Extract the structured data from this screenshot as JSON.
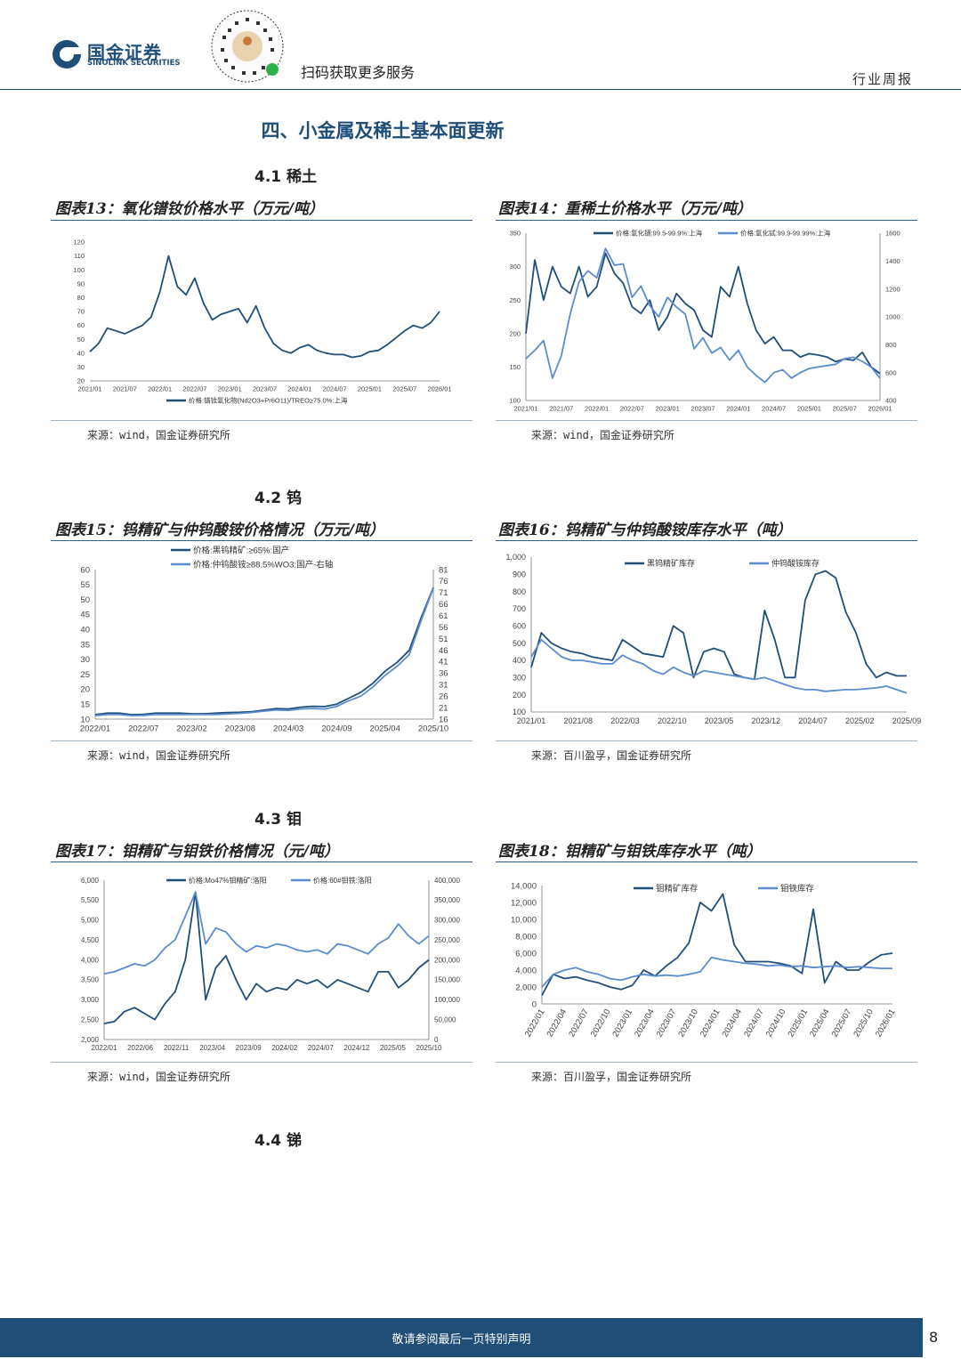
{
  "header": {
    "logo_cn": "国金证券",
    "logo_en": "SINOLINK SECURITIES",
    "scan_text": "扫码获取更多服务",
    "doc_type": "行业周报",
    "brand_color": "#1f4e79"
  },
  "section_title": "四、小金属及稀土基本面更新",
  "subsections": {
    "s41": "4.1 稀土",
    "s42": "4.2 钨",
    "s43": "4.3 钼",
    "s44": "4.4 锑"
  },
  "figures": [
    {
      "title": "图表13：氧化镨钕价格水平（万元/吨）",
      "source": "来源：wind，国金证券研究所"
    },
    {
      "title": "图表14：重稀土价格水平（万元/吨）",
      "source": "来源：wind，国金证券研究所"
    },
    {
      "title": "图表15：钨精矿与仲钨酸铵价格情况（万元/吨）",
      "source": "来源：wind，国金证券研究所"
    },
    {
      "title": "图表16：钨精矿与仲钨酸铵库存水平（吨）",
      "source": "来源：百川盈孚，国金证券研究所"
    },
    {
      "title": "图表17：钼精矿与钼铁价格情况（元/吨）",
      "source": "来源：wind，国金证券研究所"
    },
    {
      "title": "图表18：钼精矿与钼铁库存水平（吨）",
      "source": "来源：百川盈孚，国金证券研究所"
    }
  ],
  "footer": {
    "text": "敬请参阅最后一页特别声明",
    "page": "8"
  },
  "chart_data": [
    {
      "type": "line",
      "ylim": [
        20,
        120
      ],
      "yticks": [
        "20",
        "30",
        "40",
        "50",
        "60",
        "70",
        "80",
        "90",
        "100",
        "110",
        "120"
      ],
      "xticks": [
        "2021/01",
        "2021/07",
        "2022/01",
        "2022/07",
        "2023/01",
        "2023/07",
        "2024/01",
        "2024/07",
        "2025/01",
        "2025/07",
        "2026/01"
      ],
      "series": [
        {
          "name": "价格:镨钕氧化物(Nd2O3+Pr6O11)/TREO≥75.0%:上海",
          "color": "#1f4e79",
          "axis": "left",
          "values": [
            41,
            47,
            58,
            56,
            54,
            57,
            60,
            66,
            84,
            110,
            88,
            82,
            94,
            76,
            64,
            68,
            70,
            72,
            62,
            74,
            58,
            47,
            42,
            40,
            44,
            46,
            42,
            40,
            39,
            39,
            37,
            38,
            41,
            42,
            46,
            51,
            56,
            60,
            58,
            62,
            70
          ]
        }
      ]
    },
    {
      "type": "line",
      "ylim": [
        100,
        350
      ],
      "ylim_right": [
        400,
        1600
      ],
      "yticks": [
        "100",
        "150",
        "200",
        "250",
        "300",
        "350"
      ],
      "yticks_right": [
        "400",
        "600",
        "800",
        "1000",
        "1200",
        "1400",
        "1600"
      ],
      "xticks": [
        "2021/01",
        "2021/07",
        "2022/01",
        "2022/07",
        "2023/01",
        "2023/07",
        "2024/01",
        "2024/07",
        "2025/01",
        "2025/07",
        "2026/01"
      ],
      "series": [
        {
          "name": "价格:氧化镝:99.5-99.9%:上海",
          "color": "#1f4e79",
          "axis": "left",
          "values": [
            200,
            310,
            250,
            300,
            270,
            260,
            300,
            255,
            270,
            320,
            290,
            275,
            240,
            230,
            250,
            205,
            225,
            260,
            245,
            235,
            205,
            195,
            270,
            255,
            300,
            245,
            205,
            185,
            195,
            175,
            175,
            165,
            170,
            168,
            165,
            158,
            162,
            160,
            172,
            150,
            140
          ]
        },
        {
          "name": "价格:氧化铽:99.9-99.99%:上海",
          "color": "#5b8ccf",
          "axis": "right",
          "values": [
            700,
            760,
            830,
            560,
            720,
            1020,
            1250,
            1330,
            1280,
            1490,
            1370,
            1380,
            1140,
            1220,
            1080,
            1000,
            1140,
            1070,
            1020,
            770,
            850,
            740,
            780,
            690,
            760,
            640,
            580,
            530,
            600,
            620,
            560,
            600,
            630,
            640,
            650,
            660,
            700,
            710,
            680,
            640,
            560
          ]
        }
      ]
    },
    {
      "type": "line",
      "ylim": [
        10,
        60
      ],
      "ylim_right": [
        16,
        81
      ],
      "yticks": [
        "10",
        "15",
        "20",
        "25",
        "30",
        "35",
        "40",
        "45",
        "50",
        "55",
        "60"
      ],
      "yticks_right": [
        "16",
        "21",
        "26",
        "31",
        "36",
        "41",
        "46",
        "51",
        "56",
        "61",
        "66",
        "71",
        "76",
        "81"
      ],
      "xticks": [
        "2022/01",
        "2022/07",
        "2023/02",
        "2023/08",
        "2024/03",
        "2024/09",
        "2025/04",
        "2025/10"
      ],
      "series": [
        {
          "name": "价格:黑钨精矿:≥65%:国产",
          "color": "#1f4e79",
          "axis": "left",
          "values": [
            11.5,
            12,
            12,
            11.5,
            11.6,
            12,
            12,
            12,
            11.8,
            11.8,
            12,
            12.2,
            12.3,
            12.5,
            13,
            13.5,
            13.4,
            14,
            14.3,
            14.2,
            15,
            17,
            19,
            22,
            26,
            29,
            33,
            44,
            54
          ]
        },
        {
          "name": "价格:仲钨酸铵≥88.5%WO3:国产-右轴",
          "color": "#5b8ccf",
          "axis": "right",
          "values": [
            17.5,
            18,
            18,
            17.5,
            17.6,
            18,
            18,
            18,
            18,
            18,
            18,
            18.3,
            18.5,
            18.9,
            19.5,
            20,
            19.8,
            20.4,
            20.6,
            20.4,
            21.5,
            24,
            26,
            30,
            35,
            39,
            44,
            59,
            73
          ]
        }
      ]
    },
    {
      "type": "line",
      "ylim": [
        100,
        1000
      ],
      "yticks": [
        "100",
        "200",
        "300",
        "400",
        "500",
        "600",
        "700",
        "800",
        "900",
        "1,000"
      ],
      "xticks": [
        "2021/01",
        "2021/08",
        "2022/03",
        "2022/10",
        "2023/05",
        "2023/12",
        "2024/07",
        "2025/02",
        "2025/09"
      ],
      "series": [
        {
          "name": "黑钨精矿库存",
          "color": "#1f4e79",
          "axis": "left",
          "values": [
            360,
            560,
            500,
            470,
            450,
            440,
            420,
            410,
            400,
            520,
            480,
            440,
            430,
            420,
            600,
            560,
            300,
            450,
            470,
            450,
            320,
            300,
            290,
            690,
            520,
            300,
            300,
            750,
            900,
            920,
            880,
            680,
            560,
            380,
            300,
            330,
            310,
            310
          ]
        },
        {
          "name": "仲钨酸铵库存",
          "color": "#5b8ccf",
          "axis": "left",
          "values": [
            420,
            520,
            470,
            420,
            400,
            400,
            390,
            380,
            380,
            430,
            400,
            380,
            340,
            320,
            360,
            330,
            310,
            340,
            330,
            320,
            310,
            300,
            290,
            300,
            280,
            260,
            240,
            230,
            230,
            220,
            225,
            230,
            230,
            235,
            240,
            250,
            230,
            210
          ]
        }
      ]
    },
    {
      "type": "line",
      "ylim": [
        2000,
        6000
      ],
      "ylim_right": [
        0,
        400000
      ],
      "yticks": [
        "2,000",
        "2,500",
        "3,000",
        "3,500",
        "4,000",
        "4,500",
        "5,000",
        "5,500",
        "6,000"
      ],
      "yticks_right": [
        "0",
        "50,000",
        "100,000",
        "150,000",
        "200,000",
        "250,000",
        "300,000",
        "350,000",
        "400,000"
      ],
      "xticks": [
        "2022/01",
        "2022/06",
        "2022/11",
        "2023/04",
        "2023/09",
        "2024/02",
        "2024/07",
        "2024/12",
        "2025/05",
        "2025/10"
      ],
      "series": [
        {
          "name": "价格:Mo47%钼精矿:洛阳",
          "color": "#1f4e79",
          "axis": "left",
          "values": [
            2400,
            2450,
            2700,
            2800,
            2650,
            2500,
            2900,
            3200,
            4000,
            5700,
            3000,
            3800,
            4100,
            3500,
            3000,
            3400,
            3200,
            3300,
            3250,
            3500,
            3400,
            3500,
            3300,
            3500,
            3400,
            3300,
            3200,
            3700,
            3700,
            3300,
            3500,
            3800,
            4000
          ]
        },
        {
          "name": "价格:60#钼铁:洛阳",
          "color": "#5b8ccf",
          "axis": "right",
          "values": [
            165000,
            170000,
            180000,
            190000,
            185000,
            200000,
            230000,
            250000,
            310000,
            370000,
            240000,
            280000,
            270000,
            240000,
            220000,
            235000,
            230000,
            240000,
            235000,
            225000,
            220000,
            225000,
            215000,
            240000,
            235000,
            225000,
            215000,
            240000,
            255000,
            290000,
            260000,
            240000,
            260000
          ]
        }
      ]
    },
    {
      "type": "line",
      "ylim": [
        0,
        14000
      ],
      "yticks": [
        "0",
        "2,000",
        "4,000",
        "6,000",
        "8,000",
        "10,000",
        "12,000",
        "14,000"
      ],
      "xticks": [
        "2022/01",
        "2022/04",
        "2022/07",
        "2022/10",
        "2023/01",
        "2023/04",
        "2023/07",
        "2023/10",
        "2024/01",
        "2024/04",
        "2024/07",
        "2024/10",
        "2025/01",
        "2025/04",
        "2025/07",
        "2025/10",
        "2026/01"
      ],
      "series": [
        {
          "name": "钼精矿库存",
          "color": "#1f4e79",
          "axis": "left",
          "values": [
            1000,
            3500,
            3000,
            3200,
            2800,
            2500,
            2000,
            1700,
            2200,
            4000,
            3300,
            4500,
            5500,
            7200,
            12000,
            11000,
            13000,
            7000,
            5000,
            5000,
            5000,
            4800,
            4500,
            3600,
            11200,
            2500,
            5000,
            4000,
            4000,
            5000,
            5800,
            6000
          ]
        },
        {
          "name": "钼铁库存",
          "color": "#5b8ccf",
          "axis": "left",
          "values": [
            2000,
            3500,
            4000,
            4300,
            3800,
            3500,
            3000,
            2800,
            3200,
            3500,
            3300,
            3400,
            3300,
            3500,
            3800,
            5500,
            5200,
            5000,
            4800,
            4700,
            4500,
            4600,
            4400,
            4500,
            4300,
            4400,
            4500,
            4300,
            4400,
            4300,
            4200,
            4200
          ]
        }
      ]
    }
  ]
}
